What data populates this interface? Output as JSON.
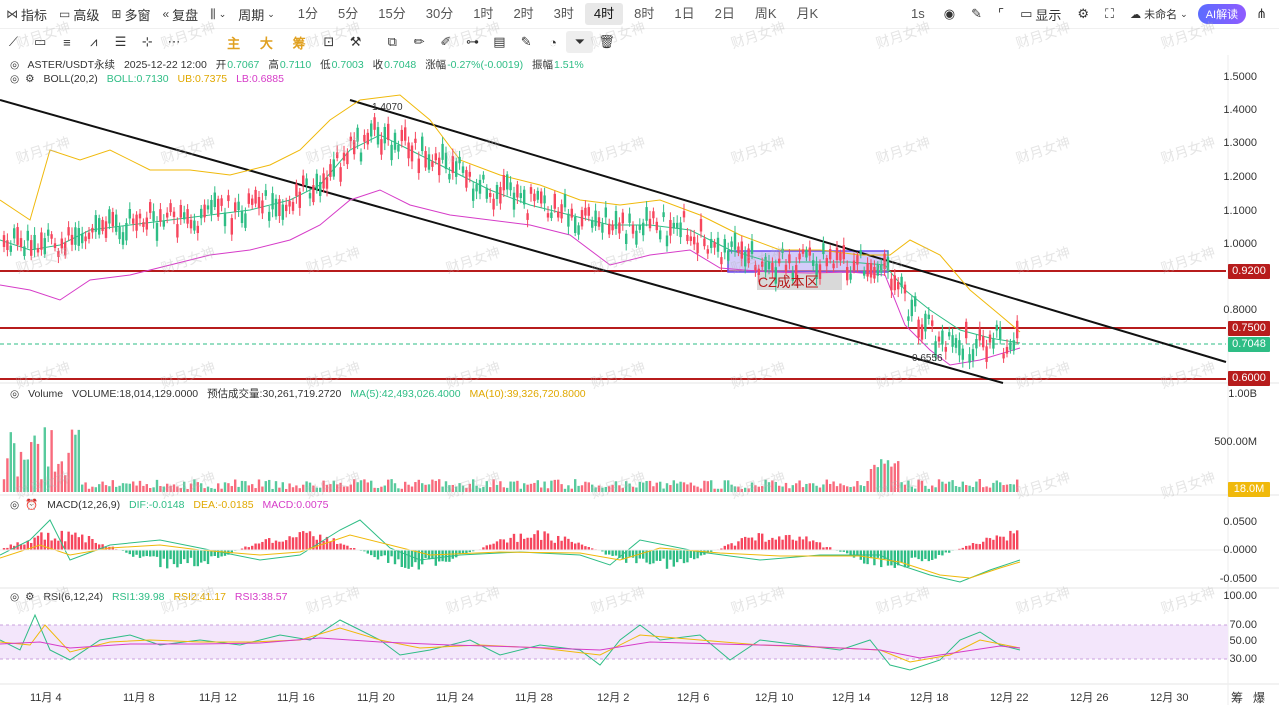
{
  "toolbar": {
    "indicators": "指标",
    "advanced": "高级",
    "multi_window": "多窗",
    "replay": "复盘",
    "period": "周期",
    "timeframes": [
      "1分",
      "5分",
      "15分",
      "30分",
      "1时",
      "2时",
      "3时",
      "4时",
      "8时",
      "1日",
      "2日",
      "周K",
      "月K"
    ],
    "active_timeframe": "4时",
    "right_interval": "1s",
    "display": "显示",
    "layout_name": "未命名",
    "ai_button": "AI解读"
  },
  "drawing_tools": {
    "text_main": "主",
    "text_big": "大",
    "text_chip": "筹"
  },
  "main_legend": {
    "symbol": "ASTER/USDT永续",
    "datetime": "2025-12-22 12:00",
    "open_label": "开",
    "open": "0.7067",
    "high_label": "高",
    "high": "0.7110",
    "low_label": "低",
    "low": "0.7003",
    "close_label": "收",
    "close": "0.7048",
    "change_label": "涨幅",
    "change": "-0.27%(-0.0019)",
    "amp_label": "振幅",
    "amp": "1.51%"
  },
  "boll_legend": {
    "name": "BOLL(20,2)",
    "boll": "BOLL:0.7130",
    "ub": "UB:0.7375",
    "lb": "LB:0.6885"
  },
  "volume_legend": {
    "name": "Volume",
    "volume": "VOLUME:18,014,129.0000",
    "est": "预估成交量:30,261,719.2720",
    "ma5": "MA(5):42,493,026.4000",
    "ma10": "MA(10):39,326,720.8000"
  },
  "macd_legend": {
    "name": "MACD(12,26,9)",
    "dif": "DIF:-0.0148",
    "dea": "DEA:-0.0185",
    "macd": "MACD:0.0075"
  },
  "rsi_legend": {
    "name": "RSI(6,12,24)",
    "rsi1": "RSI1:39.98",
    "rsi2": "RSI2:41.17",
    "rsi3": "RSI3:38.57"
  },
  "price_axis": [
    "1.5000",
    "1.4000",
    "1.3000",
    "1.2000",
    "1.1000",
    "1.0000",
    "0.8000"
  ],
  "price_tags": {
    "level1": "0.9200",
    "level2": "0.7500",
    "current": "0.7048",
    "level3": "0.6000"
  },
  "volume_axis": [
    "1.00B",
    "500.00M"
  ],
  "volume_tag": "18.0M",
  "macd_axis": [
    "0.0500",
    "0.0000",
    "-0.0500"
  ],
  "rsi_axis": [
    "100.00",
    "70.00",
    "50.00",
    "30.00"
  ],
  "x_axis": [
    "11月 4",
    "11月 8",
    "11月 12",
    "11月 16",
    "11月 20",
    "11月 24",
    "11月 28",
    "12月 2",
    "12月 6",
    "12月 10",
    "12月 14",
    "12月 18",
    "12月 22",
    "12月 26",
    "12月 30"
  ],
  "annotations": {
    "high_label": "1.4070",
    "low_label": "0.6556",
    "zone_label": "CZ成本区"
  },
  "watermark": "财月女神",
  "bottom_right": [
    "筹",
    "爆"
  ],
  "colors": {
    "up": "#2ebd85",
    "down": "#f6465d",
    "level_line": "#b71c1c",
    "boll_mid": "#2ebd85",
    "boll_up": "#f0b90b",
    "boll_low": "#d63cc8",
    "zone": "#9b8cf0"
  }
}
